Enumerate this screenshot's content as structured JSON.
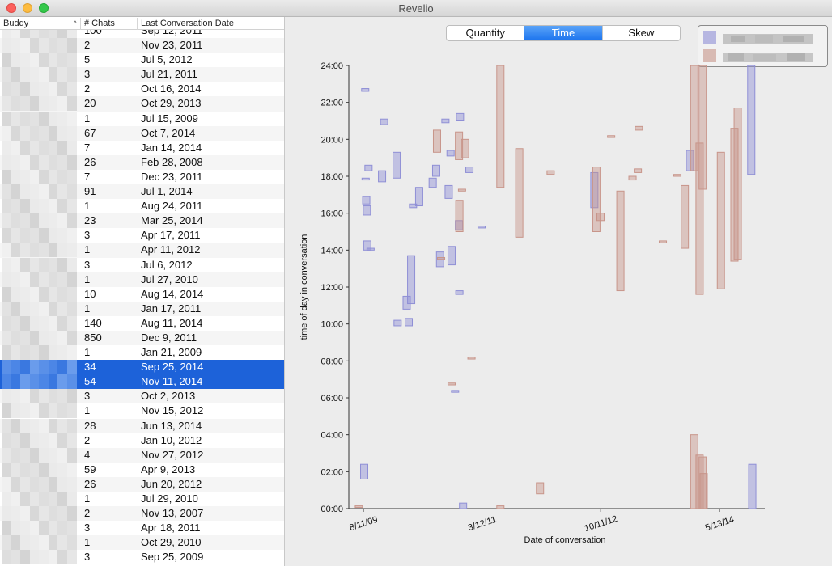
{
  "window": {
    "title": "Revelio"
  },
  "table": {
    "headers": {
      "buddy": "Buddy",
      "chats": "# Chats",
      "date": "Last Conversation Date"
    },
    "rows": [
      {
        "chats": "100",
        "date": "Sep 12, 2011"
      },
      {
        "chats": "2",
        "date": "Nov 23, 2011"
      },
      {
        "chats": "5",
        "date": "Jul 5, 2012"
      },
      {
        "chats": "3",
        "date": "Jul 21, 2011"
      },
      {
        "chats": "2",
        "date": "Oct 16, 2014"
      },
      {
        "chats": "20",
        "date": "Oct 29, 2013"
      },
      {
        "chats": "1",
        "date": "Jul 15, 2009"
      },
      {
        "chats": "67",
        "date": "Oct 7, 2014"
      },
      {
        "chats": "7",
        "date": "Jan 14, 2014"
      },
      {
        "chats": "26",
        "date": "Feb 28, 2008"
      },
      {
        "chats": "7",
        "date": "Dec 23, 2011"
      },
      {
        "chats": "91",
        "date": "Jul 1, 2014"
      },
      {
        "chats": "1",
        "date": "Aug 24, 2011"
      },
      {
        "chats": "23",
        "date": "Mar 25, 2014"
      },
      {
        "chats": "3",
        "date": "Apr 17, 2011"
      },
      {
        "chats": "1",
        "date": "Apr 11, 2012"
      },
      {
        "chats": "3",
        "date": "Jul 6, 2012"
      },
      {
        "chats": "1",
        "date": "Jul 27, 2010"
      },
      {
        "chats": "10",
        "date": "Aug 14, 2014"
      },
      {
        "chats": "1",
        "date": "Jan 17, 2011"
      },
      {
        "chats": "140",
        "date": "Aug 11, 2014"
      },
      {
        "chats": "850",
        "date": "Dec 9, 2011"
      },
      {
        "chats": "1",
        "date": "Jan 21, 2009"
      },
      {
        "chats": "34",
        "date": "Sep 25, 2014",
        "selected": true
      },
      {
        "chats": "54",
        "date": "Nov 11, 2014",
        "selected": true
      },
      {
        "chats": "3",
        "date": "Oct 2, 2013"
      },
      {
        "chats": "1",
        "date": "Nov 15, 2012"
      },
      {
        "chats": "28",
        "date": "Jun 13, 2014"
      },
      {
        "chats": "2",
        "date": "Jan 10, 2012"
      },
      {
        "chats": "4",
        "date": "Nov 27, 2012"
      },
      {
        "chats": "59",
        "date": "Apr 9, 2013"
      },
      {
        "chats": "26",
        "date": "Jun 20, 2012"
      },
      {
        "chats": "1",
        "date": "Jul 29, 2010"
      },
      {
        "chats": "2",
        "date": "Nov 13, 2007"
      },
      {
        "chats": "3",
        "date": "Apr 18, 2011"
      },
      {
        "chats": "1",
        "date": "Oct 29, 2010"
      },
      {
        "chats": "3",
        "date": "Sep 25, 2009"
      }
    ]
  },
  "segmented_control": {
    "options": [
      "Quantity",
      "Time",
      "Skew"
    ],
    "selected": "Time"
  },
  "colors": {
    "series_blue": "#8f8fd6",
    "series_brown": "#c8958a",
    "selection": "#1d62d9"
  },
  "chart_data": {
    "type": "floating-bar",
    "xlabel": "Date of conversation",
    "ylabel": "time of day in conversation",
    "x_ticks": [
      "8/11/09",
      "3/12/11",
      "10/11/12",
      "5/13/14"
    ],
    "y_ticks": [
      "00:00",
      "02:00",
      "04:00",
      "06:00",
      "08:00",
      "10:00",
      "12:00",
      "14:00",
      "16:00",
      "18:00",
      "20:00",
      "22:00",
      "24:00"
    ],
    "ylim": [
      0,
      24
    ],
    "xlim": [
      "2009-06-01",
      "2014-12-20"
    ],
    "legend_placement": "top-right",
    "series": [
      {
        "color": "#8f8fd6",
        "bars": [
          {
            "date": "2009-08-15",
            "start": 1.6,
            "end": 2.4
          },
          {
            "date": "2009-08-20",
            "start": 22.6,
            "end": 22.75
          },
          {
            "date": "2009-08-22",
            "start": 17.8,
            "end": 17.9
          },
          {
            "date": "2009-08-25",
            "start": 16.5,
            "end": 16.9
          },
          {
            "date": "2009-08-28",
            "start": 15.9,
            "end": 16.4
          },
          {
            "date": "2009-08-30",
            "start": 14.0,
            "end": 14.5
          },
          {
            "date": "2009-09-05",
            "start": 18.3,
            "end": 18.6
          },
          {
            "date": "2009-09-15",
            "start": 14.0,
            "end": 14.1
          },
          {
            "date": "2009-11-10",
            "start": 17.7,
            "end": 18.3
          },
          {
            "date": "2009-11-20",
            "start": 20.8,
            "end": 21.1
          },
          {
            "date": "2010-01-20",
            "start": 17.9,
            "end": 19.3
          },
          {
            "date": "2010-01-25",
            "start": 9.9,
            "end": 10.2
          },
          {
            "date": "2010-03-10",
            "start": 10.8,
            "end": 11.5
          },
          {
            "date": "2010-03-20",
            "start": 9.9,
            "end": 10.3
          },
          {
            "date": "2010-04-01",
            "start": 11.1,
            "end": 13.7
          },
          {
            "date": "2010-04-10",
            "start": 16.3,
            "end": 16.5
          },
          {
            "date": "2010-05-10",
            "start": 16.4,
            "end": 17.4
          },
          {
            "date": "2010-07-15",
            "start": 17.4,
            "end": 17.9
          },
          {
            "date": "2010-08-01",
            "start": 18.0,
            "end": 18.6
          },
          {
            "date": "2010-08-20",
            "start": 13.1,
            "end": 13.9
          },
          {
            "date": "2010-09-15",
            "start": 20.9,
            "end": 21.1
          },
          {
            "date": "2010-10-01",
            "start": 16.8,
            "end": 17.5
          },
          {
            "date": "2010-10-10",
            "start": 19.1,
            "end": 19.4
          },
          {
            "date": "2010-10-15",
            "start": 13.2,
            "end": 14.2
          },
          {
            "date": "2010-11-01",
            "start": 6.3,
            "end": 6.4
          },
          {
            "date": "2010-11-20",
            "start": 15.1,
            "end": 15.6
          },
          {
            "date": "2010-11-22",
            "start": 11.6,
            "end": 11.8
          },
          {
            "date": "2010-11-25",
            "start": 21.0,
            "end": 21.4
          },
          {
            "date": "2010-12-10",
            "start": 0.0,
            "end": 0.3
          },
          {
            "date": "2011-01-10",
            "start": 18.2,
            "end": 18.5
          },
          {
            "date": "2011-03-10",
            "start": 15.2,
            "end": 15.3
          },
          {
            "date": "2012-09-10",
            "start": 16.3,
            "end": 18.2
          },
          {
            "date": "2013-12-20",
            "start": 18.3,
            "end": 19.4
          },
          {
            "date": "2014-10-15",
            "start": 18.1,
            "end": 24.0
          },
          {
            "date": "2014-10-20",
            "start": 0.0,
            "end": 2.4
          }
        ]
      },
      {
        "color": "#c8958a",
        "bars": [
          {
            "date": "2009-07-20",
            "start": 0.1,
            "end": 0.15
          },
          {
            "date": "2010-08-05",
            "start": 19.3,
            "end": 20.5
          },
          {
            "date": "2010-08-25",
            "start": 13.5,
            "end": 13.6
          },
          {
            "date": "2010-10-15",
            "start": 6.7,
            "end": 6.8
          },
          {
            "date": "2010-11-20",
            "start": 18.9,
            "end": 20.4
          },
          {
            "date": "2010-11-22",
            "start": 15.0,
            "end": 16.7
          },
          {
            "date": "2010-12-05",
            "start": 17.2,
            "end": 17.3
          },
          {
            "date": "2010-12-20",
            "start": 19.0,
            "end": 20.0
          },
          {
            "date": "2011-01-20",
            "start": 8.1,
            "end": 8.2
          },
          {
            "date": "2011-06-10",
            "start": 17.4,
            "end": 24.0
          },
          {
            "date": "2011-06-10",
            "start": 0.0,
            "end": 0.15
          },
          {
            "date": "2011-09-10",
            "start": 14.7,
            "end": 19.5
          },
          {
            "date": "2011-12-20",
            "start": 0.8,
            "end": 1.4
          },
          {
            "date": "2012-02-10",
            "start": 18.1,
            "end": 18.3
          },
          {
            "date": "2012-09-20",
            "start": 15.0,
            "end": 18.5
          },
          {
            "date": "2012-10-10",
            "start": 15.6,
            "end": 16.0
          },
          {
            "date": "2012-12-01",
            "start": 20.1,
            "end": 20.2
          },
          {
            "date": "2013-01-15",
            "start": 11.8,
            "end": 17.2
          },
          {
            "date": "2013-03-15",
            "start": 17.8,
            "end": 18.0
          },
          {
            "date": "2013-04-10",
            "start": 18.2,
            "end": 18.4
          },
          {
            "date": "2013-04-15",
            "start": 20.5,
            "end": 20.7
          },
          {
            "date": "2013-08-10",
            "start": 14.4,
            "end": 14.5
          },
          {
            "date": "2013-10-20",
            "start": 18.0,
            "end": 18.1
          },
          {
            "date": "2013-11-25",
            "start": 14.1,
            "end": 17.5
          },
          {
            "date": "2014-01-10",
            "start": 18.3,
            "end": 24.0
          },
          {
            "date": "2014-02-05",
            "start": 11.6,
            "end": 19.8
          },
          {
            "date": "2014-02-20",
            "start": 17.3,
            "end": 24.0
          },
          {
            "date": "2014-01-10",
            "start": 0.0,
            "end": 4.0
          },
          {
            "date": "2014-02-05",
            "start": 0.0,
            "end": 2.9
          },
          {
            "date": "2014-02-20",
            "start": 0.0,
            "end": 2.8
          },
          {
            "date": "2014-02-25",
            "start": 0.0,
            "end": 1.9
          },
          {
            "date": "2014-05-20",
            "start": 11.9,
            "end": 19.3
          },
          {
            "date": "2014-07-25",
            "start": 13.4,
            "end": 20.6
          },
          {
            "date": "2014-08-10",
            "start": 13.5,
            "end": 21.7
          }
        ]
      }
    ]
  }
}
